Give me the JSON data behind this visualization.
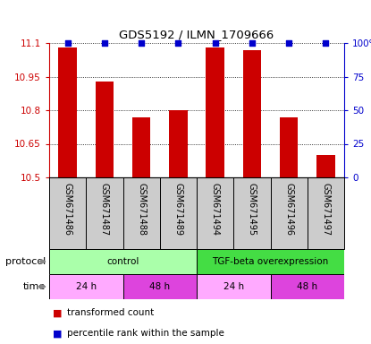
{
  "title": "GDS5192 / ILMN_1709666",
  "samples": [
    "GSM671486",
    "GSM671487",
    "GSM671488",
    "GSM671489",
    "GSM671494",
    "GSM671495",
    "GSM671496",
    "GSM671497"
  ],
  "bar_values": [
    11.08,
    10.93,
    10.77,
    10.8,
    11.08,
    11.07,
    10.77,
    10.6
  ],
  "ylim_left": [
    10.5,
    11.1
  ],
  "ylim_right": [
    0,
    100
  ],
  "yticks_left": [
    10.5,
    10.65,
    10.8,
    10.95,
    11.1
  ],
  "ytick_labels_left": [
    "10.5",
    "10.65",
    "10.8",
    "10.95",
    "11.1"
  ],
  "yticks_right": [
    0,
    25,
    50,
    75,
    100
  ],
  "ytick_labels_right": [
    "0",
    "25",
    "50",
    "75",
    "100%"
  ],
  "bar_color": "#cc0000",
  "bar_base": 10.5,
  "dot_color": "#0000cc",
  "percentile_val": 100,
  "protocol_groups": [
    {
      "label": "control",
      "start": 0,
      "end": 4,
      "color": "#aaffaa"
    },
    {
      "label": "TGF-beta overexpression",
      "start": 4,
      "end": 8,
      "color": "#44dd44"
    }
  ],
  "time_groups": [
    {
      "label": "24 h",
      "start": 0,
      "end": 2,
      "color": "#ffaaff"
    },
    {
      "label": "48 h",
      "start": 2,
      "end": 4,
      "color": "#dd44dd"
    },
    {
      "label": "24 h",
      "start": 4,
      "end": 6,
      "color": "#ffaaff"
    },
    {
      "label": "48 h",
      "start": 6,
      "end": 8,
      "color": "#dd44dd"
    }
  ],
  "sample_bg_color": "#cccccc",
  "legend_items": [
    {
      "label": "transformed count",
      "color": "#cc0000"
    },
    {
      "label": "percentile rank within the sample",
      "color": "#0000cc"
    }
  ],
  "tick_color_left": "#cc0000",
  "tick_color_right": "#0000cc"
}
